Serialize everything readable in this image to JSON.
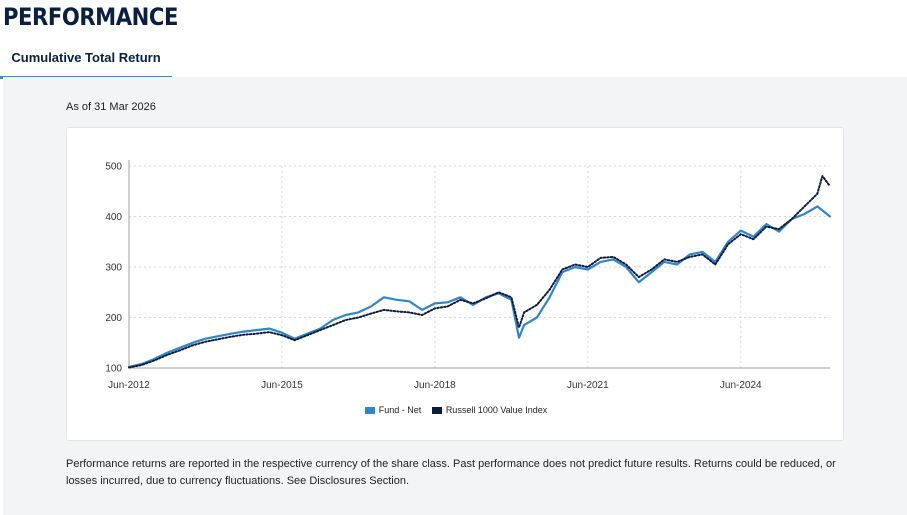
{
  "page": {
    "heading": "PERFORMANCE",
    "tab_label": "Cumulative Total Return",
    "as_of": "As of 31 Mar 2026",
    "disclaimer": "Performance returns are reported in the respective currency of the share class. Past performance does not predict future results. Returns could be reduced, or losses incurred, due to currency fluctuations. See Disclosures Section."
  },
  "colors": {
    "fund": "#2f86c8",
    "index": "#0d1b3e",
    "heading": "#0a1f44",
    "tab_underline": "#2f8fd3"
  },
  "chart_data": {
    "type": "line",
    "title": "",
    "xlabel": "",
    "ylabel": "",
    "x_ticks": [
      "Jun-2012",
      "Jun-2015",
      "Jun-2018",
      "Jun-2021",
      "Jun-2024"
    ],
    "x_tick_years": [
      2012.5,
      2015.5,
      2018.5,
      2021.5,
      2024.5
    ],
    "xlim": [
      2012.5,
      2026.25
    ],
    "y_ticks": [
      100,
      200,
      300,
      400,
      500
    ],
    "ylim": [
      100,
      500
    ],
    "grid": true,
    "legend_position": "bottom-center",
    "series": [
      {
        "name": "Fund - Net",
        "style": "solid",
        "x": [
          2012.5,
          2012.75,
          2013.0,
          2013.25,
          2013.5,
          2013.75,
          2014.0,
          2014.25,
          2014.5,
          2014.75,
          2015.0,
          2015.25,
          2015.5,
          2015.75,
          2016.0,
          2016.25,
          2016.5,
          2016.75,
          2017.0,
          2017.25,
          2017.5,
          2017.75,
          2018.0,
          2018.25,
          2018.5,
          2018.75,
          2019.0,
          2019.25,
          2019.5,
          2019.75,
          2020.0,
          2020.15,
          2020.25,
          2020.5,
          2020.75,
          2021.0,
          2021.25,
          2021.5,
          2021.75,
          2022.0,
          2022.25,
          2022.5,
          2022.75,
          2023.0,
          2023.25,
          2023.5,
          2023.75,
          2024.0,
          2024.25,
          2024.5,
          2024.75,
          2025.0,
          2025.25,
          2025.5,
          2025.75,
          2026.0,
          2026.25
        ],
        "y": [
          102,
          108,
          118,
          130,
          140,
          150,
          158,
          163,
          168,
          172,
          175,
          178,
          170,
          158,
          168,
          178,
          195,
          205,
          210,
          222,
          240,
          235,
          232,
          215,
          228,
          230,
          240,
          225,
          240,
          248,
          235,
          160,
          185,
          200,
          240,
          290,
          300,
          295,
          310,
          315,
          300,
          270,
          290,
          310,
          305,
          325,
          330,
          310,
          350,
          372,
          360,
          385,
          370,
          395,
          405,
          420,
          400
        ]
      },
      {
        "name": "Russell 1000 Value Index",
        "style": "dotted",
        "x": [
          2012.5,
          2012.75,
          2013.0,
          2013.25,
          2013.5,
          2013.75,
          2014.0,
          2014.25,
          2014.5,
          2014.75,
          2015.0,
          2015.25,
          2015.5,
          2015.75,
          2016.0,
          2016.25,
          2016.5,
          2016.75,
          2017.0,
          2017.25,
          2017.5,
          2017.75,
          2018.0,
          2018.25,
          2018.5,
          2018.75,
          2019.0,
          2019.25,
          2019.5,
          2019.75,
          2020.0,
          2020.15,
          2020.25,
          2020.5,
          2020.75,
          2021.0,
          2021.25,
          2021.5,
          2021.75,
          2022.0,
          2022.25,
          2022.5,
          2022.75,
          2023.0,
          2023.25,
          2023.5,
          2023.75,
          2024.0,
          2024.25,
          2024.5,
          2024.75,
          2025.0,
          2025.25,
          2025.5,
          2025.75,
          2026.0,
          2026.1,
          2026.25
        ],
        "y": [
          101,
          106,
          115,
          126,
          135,
          145,
          152,
          157,
          162,
          166,
          168,
          171,
          165,
          155,
          165,
          175,
          185,
          195,
          200,
          208,
          215,
          212,
          210,
          205,
          218,
          222,
          235,
          228,
          238,
          250,
          240,
          180,
          210,
          225,
          255,
          295,
          305,
          300,
          318,
          320,
          305,
          280,
          295,
          315,
          310,
          320,
          325,
          305,
          345,
          365,
          355,
          380,
          375,
          395,
          420,
          445,
          480,
          460
        ]
      }
    ]
  }
}
